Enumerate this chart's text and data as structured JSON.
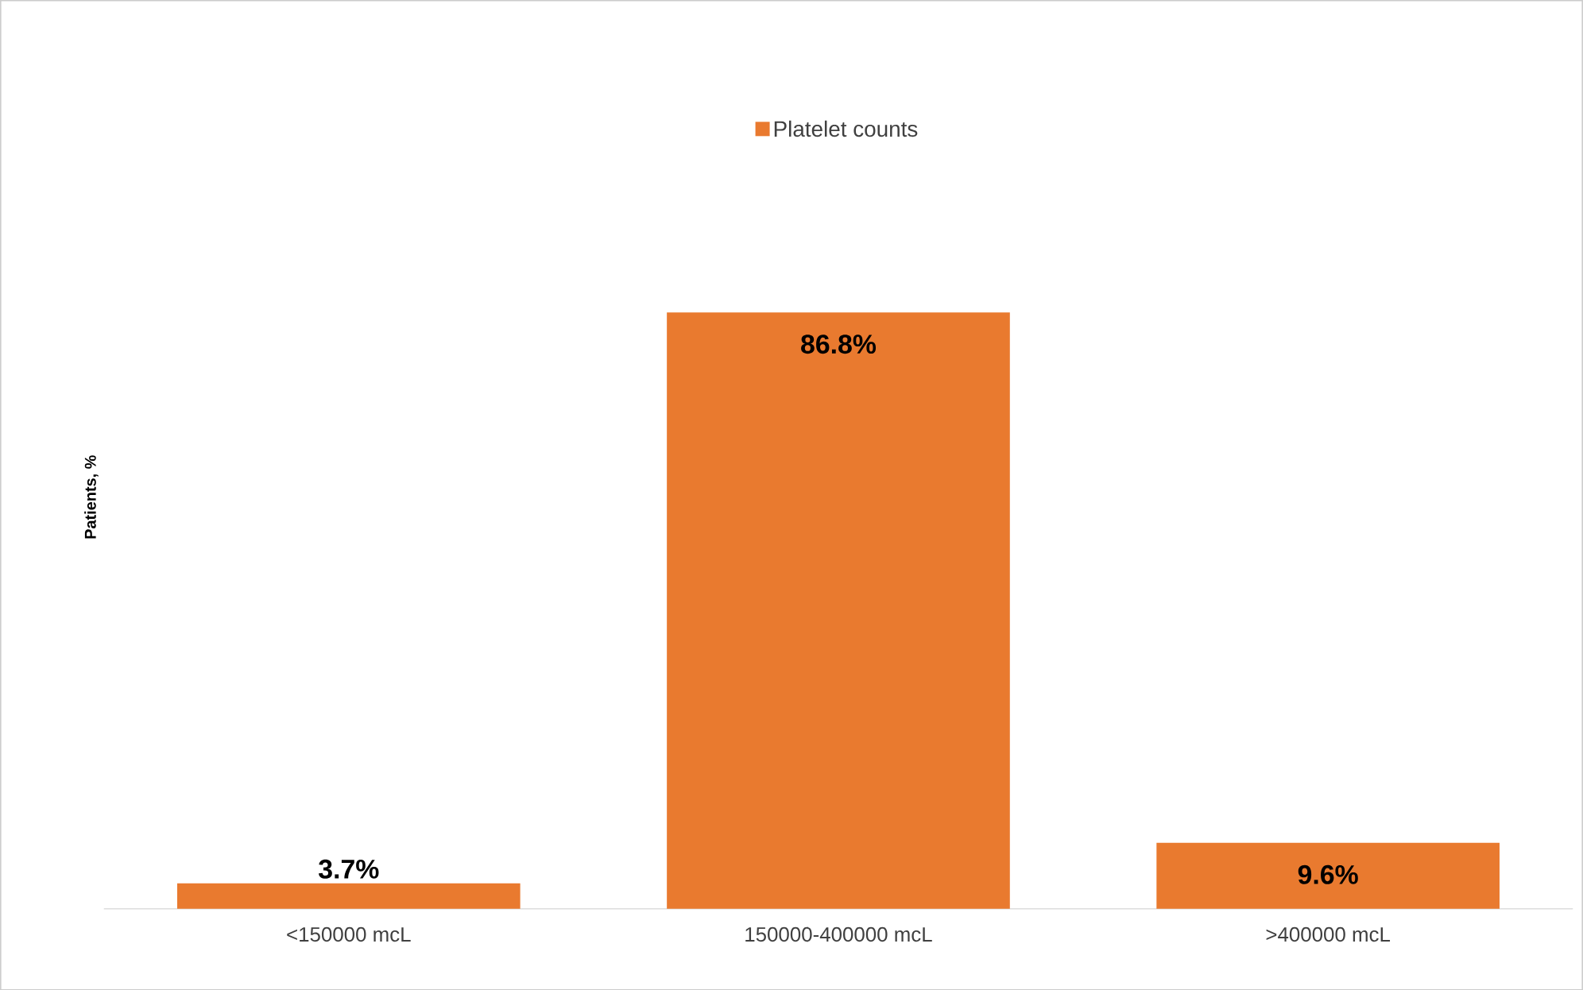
{
  "chart_data": {
    "type": "bar",
    "ylabel": "Patients, %",
    "categories": [
      "<150000 mcL",
      "150000-400000 mcL",
      ">400000 mcL"
    ],
    "series": [
      {
        "name": "Platelet counts",
        "color": "#e97a2f",
        "values": [
          3.7,
          86.8,
          9.6
        ],
        "value_labels": [
          "3.7%",
          "86.8%",
          "9.6%"
        ]
      }
    ],
    "legend": "top"
  }
}
